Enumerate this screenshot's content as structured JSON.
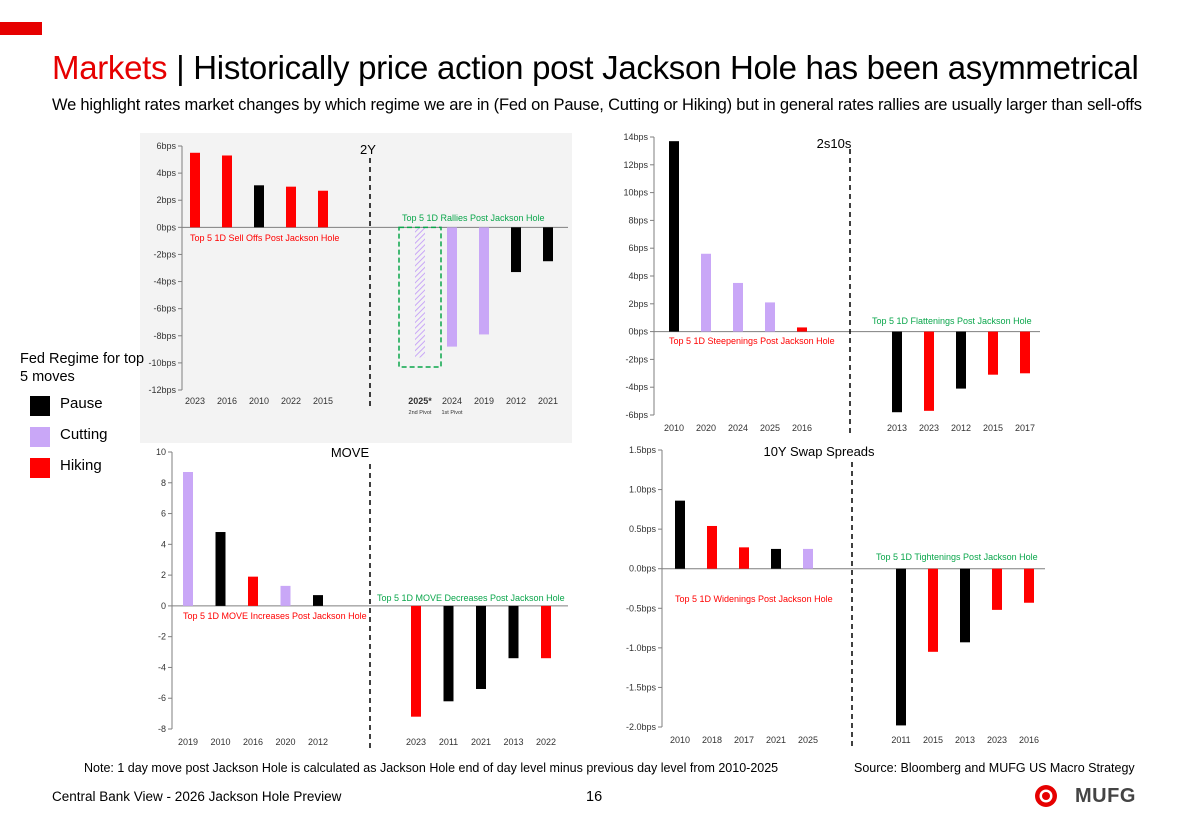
{
  "header": {
    "title_prefix": "Markets",
    "title_rest": " | Historically price action post Jackson Hole has been asymmetrical",
    "subtitle": "We highlight rates market changes by which regime we are in (Fed on Pause, Cutting or Hiking) but in general rates rallies are usually larger than sell-offs"
  },
  "legend": {
    "title": "Fed Regime for top 5 moves",
    "items": [
      {
        "label": "Pause",
        "color": "#000000"
      },
      {
        "label": "Cutting",
        "color": "#c9a7f7"
      },
      {
        "label": "Hiking",
        "color": "#ff0000"
      }
    ]
  },
  "colors": {
    "pause": "#000000",
    "cutting": "#c9a7f7",
    "hiking": "#ff0000",
    "green": "#0aa64b",
    "accent": "#e60000"
  },
  "chart_data": [
    {
      "type": "bar",
      "title": "2Y",
      "yunit": "bps",
      "ylim": [
        -12,
        6
      ],
      "ytick_step": 2,
      "left_annotation": "Top 5 1D Sell Offs Post Jackson Hole",
      "right_annotation": "Top 5 1D Rallies Post Jackson Hole",
      "left": [
        {
          "x": "2023",
          "value": 5.5,
          "regime": "hiking"
        },
        {
          "x": "2016",
          "value": 5.3,
          "regime": "hiking"
        },
        {
          "x": "2010",
          "value": 3.1,
          "regime": "pause"
        },
        {
          "x": "2022",
          "value": 3.0,
          "regime": "hiking"
        },
        {
          "x": "2015",
          "value": 2.7,
          "regime": "hiking"
        }
      ],
      "right": [
        {
          "x": "2025*",
          "value": -9.6,
          "regime": "cutting",
          "highlight": true,
          "sublabel": "2nd Pivot"
        },
        {
          "x": "2024",
          "value": -8.8,
          "regime": "cutting",
          "sublabel": "1st Pivot"
        },
        {
          "x": "2019",
          "value": -7.9,
          "regime": "cutting"
        },
        {
          "x": "2012",
          "value": -3.3,
          "regime": "pause"
        },
        {
          "x": "2021",
          "value": -2.5,
          "regime": "pause"
        }
      ]
    },
    {
      "type": "bar",
      "title": "2s10s",
      "yunit": "bps",
      "ylim": [
        -6,
        14
      ],
      "ytick_step": 2,
      "left_annotation": "Top 5 1D Steepenings Post Jackson Hole",
      "right_annotation": "Top 5 1D Flattenings Post Jackson Hole",
      "left": [
        {
          "x": "2010",
          "value": 13.7,
          "regime": "pause"
        },
        {
          "x": "2020",
          "value": 5.6,
          "regime": "cutting"
        },
        {
          "x": "2024",
          "value": 3.5,
          "regime": "cutting"
        },
        {
          "x": "2025",
          "value": 2.1,
          "regime": "cutting"
        },
        {
          "x": "2016",
          "value": 0.3,
          "regime": "hiking"
        }
      ],
      "right": [
        {
          "x": "2013",
          "value": -5.8,
          "regime": "pause"
        },
        {
          "x": "2023",
          "value": -5.7,
          "regime": "hiking"
        },
        {
          "x": "2012",
          "value": -4.1,
          "regime": "pause"
        },
        {
          "x": "2015",
          "value": -3.1,
          "regime": "hiking"
        },
        {
          "x": "2017",
          "value": -3.0,
          "regime": "hiking"
        }
      ]
    },
    {
      "type": "bar",
      "title": "MOVE",
      "yunit": "",
      "ylim": [
        -8,
        10
      ],
      "ytick_step": 2,
      "left_annotation": "Top 5 1D MOVE Increases Post Jackson Hole",
      "right_annotation": "Top 5 1D MOVE Decreases Post Jackson Hole",
      "left": [
        {
          "x": "2019",
          "value": 8.7,
          "regime": "cutting"
        },
        {
          "x": "2010",
          "value": 4.8,
          "regime": "pause"
        },
        {
          "x": "2016",
          "value": 1.9,
          "regime": "hiking"
        },
        {
          "x": "2020",
          "value": 1.3,
          "regime": "cutting"
        },
        {
          "x": "2012",
          "value": 0.7,
          "regime": "pause"
        }
      ],
      "right": [
        {
          "x": "2023",
          "value": -7.2,
          "regime": "hiking"
        },
        {
          "x": "2011",
          "value": -6.2,
          "regime": "pause"
        },
        {
          "x": "2021",
          "value": -5.4,
          "regime": "pause"
        },
        {
          "x": "2013",
          "value": -3.4,
          "regime": "pause"
        },
        {
          "x": "2022",
          "value": -3.4,
          "regime": "hiking"
        }
      ]
    },
    {
      "type": "bar",
      "title": "10Y Swap Spreads",
      "yunit": "bps",
      "ylim": [
        -2.0,
        1.5
      ],
      "ytick_step": 0.5,
      "left_annotation": "Top 5 1D Widenings Post Jackson Hole",
      "right_annotation": "Top 5 1D Tightenings Post Jackson Hole",
      "left": [
        {
          "x": "2010",
          "value": 0.86,
          "regime": "pause"
        },
        {
          "x": "2018",
          "value": 0.54,
          "regime": "hiking"
        },
        {
          "x": "2017",
          "value": 0.27,
          "regime": "hiking"
        },
        {
          "x": "2021",
          "value": 0.25,
          "regime": "pause"
        },
        {
          "x": "2025",
          "value": 0.25,
          "regime": "cutting"
        }
      ],
      "right": [
        {
          "x": "2011",
          "value": -1.98,
          "regime": "pause"
        },
        {
          "x": "2015",
          "value": -1.05,
          "regime": "hiking"
        },
        {
          "x": "2013",
          "value": -0.93,
          "regime": "pause"
        },
        {
          "x": "2023",
          "value": -0.52,
          "regime": "hiking"
        },
        {
          "x": "2016",
          "value": -0.43,
          "regime": "hiking"
        }
      ]
    }
  ],
  "footer": {
    "note": "Note: 1 day move post Jackson Hole is calculated as Jackson Hole end of day level minus previous day level from 2010-2025",
    "source": "Source: Bloomberg and MUFG US Macro Strategy",
    "left": "Central Bank View - 2026 Jackson Hole Preview",
    "page": "16",
    "logo_text": "MUFG"
  }
}
